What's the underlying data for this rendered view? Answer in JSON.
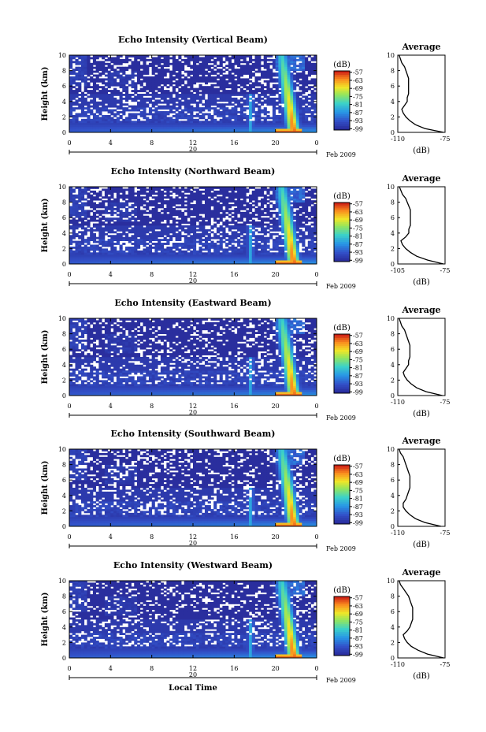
{
  "chart_data": [
    {
      "type": "heatmap",
      "title": "Echo Intensity (Vertical Beam)",
      "ylabel": "Height (km)",
      "x_ticks": [
        "0",
        "4",
        "8",
        "12",
        "16",
        "20",
        "0"
      ],
      "y_ticks": [
        "0",
        "2",
        "4",
        "6",
        "8",
        "10"
      ],
      "xlim": [
        0,
        24
      ],
      "ylim": [
        0,
        10
      ],
      "date_marker": "20",
      "date_label": "Feb 2009",
      "colorbar": {
        "unit": "(dB)",
        "ticks": [
          "-57",
          "-63",
          "-69",
          "-75",
          "-81",
          "-87",
          "-93",
          "-99"
        ],
        "range": [
          -100,
          -56
        ]
      },
      "profile": {
        "title": "Average",
        "xlabel": "(dB)",
        "x_ticks": [
          "-110",
          "-75"
        ],
        "xlim": [
          -110,
          -75
        ],
        "heights": [
          0,
          0.5,
          1,
          1.5,
          2,
          2.5,
          3,
          3.5,
          4,
          4.5,
          5,
          5.5,
          6,
          6.5,
          7,
          7.5,
          8,
          8.5,
          9,
          9.5,
          10
        ],
        "values": [
          -76,
          -90,
          -97,
          -101,
          -104,
          -106,
          -107,
          -105,
          -103,
          -103,
          -102,
          -102,
          -102,
          -102,
          -102,
          -103,
          -104,
          -105,
          -107,
          -108,
          -109
        ]
      }
    },
    {
      "type": "heatmap",
      "title": "Echo Intensity (Northward Beam)",
      "ylabel": "Height (km)",
      "x_ticks": [
        "0",
        "4",
        "8",
        "12",
        "16",
        "20",
        "0"
      ],
      "y_ticks": [
        "0",
        "2",
        "4",
        "6",
        "8",
        "10"
      ],
      "xlim": [
        0,
        24
      ],
      "ylim": [
        0,
        10
      ],
      "date_marker": "20",
      "date_label": "Feb 2009",
      "colorbar": {
        "unit": "(dB)",
        "ticks": [
          "-57",
          "-63",
          "-69",
          "-75",
          "-81",
          "-87",
          "-93",
          "-99"
        ],
        "range": [
          -100,
          -56
        ]
      },
      "profile": {
        "title": "Average",
        "xlabel": "(dB)",
        "x_ticks": [
          "-105",
          "-75"
        ],
        "xlim": [
          -105,
          -75
        ],
        "heights": [
          0,
          0.5,
          1,
          1.5,
          2,
          2.5,
          3,
          3.5,
          4,
          4.5,
          5,
          5.5,
          6,
          6.5,
          7,
          7.5,
          8,
          8.5,
          9,
          9.5,
          10
        ],
        "values": [
          -76,
          -86,
          -93,
          -97,
          -100,
          -102,
          -103,
          -100,
          -98,
          -98,
          -97,
          -97,
          -97,
          -97,
          -97,
          -98,
          -99,
          -100,
          -102,
          -103,
          -104
        ]
      }
    },
    {
      "type": "heatmap",
      "title": "Echo Intensity (Eastward Beam)",
      "ylabel": "Height (km)",
      "x_ticks": [
        "0",
        "4",
        "8",
        "12",
        "16",
        "20",
        "0"
      ],
      "y_ticks": [
        "0",
        "2",
        "4",
        "6",
        "8",
        "10"
      ],
      "xlim": [
        0,
        24
      ],
      "ylim": [
        0,
        10
      ],
      "date_marker": "20",
      "date_label": "Feb 2009",
      "colorbar": {
        "unit": "(dB)",
        "ticks": [
          "-57",
          "-63",
          "-69",
          "-75",
          "-81",
          "-87",
          "-93",
          "-99"
        ],
        "range": [
          -100,
          -56
        ]
      },
      "profile": {
        "title": "Average",
        "xlabel": "(dB)",
        "x_ticks": [
          "-110",
          "-75"
        ],
        "xlim": [
          -110,
          -75
        ],
        "heights": [
          0,
          0.5,
          1,
          1.5,
          2,
          2.5,
          3,
          3.5,
          4,
          4.5,
          5,
          5.5,
          6,
          6.5,
          7,
          7.5,
          8,
          8.5,
          9,
          9.5,
          10
        ],
        "values": [
          -77,
          -89,
          -96,
          -100,
          -103,
          -105,
          -106,
          -104,
          -102,
          -102,
          -101,
          -101,
          -101,
          -101,
          -102,
          -103,
          -104,
          -105,
          -107,
          -108,
          -109
        ]
      }
    },
    {
      "type": "heatmap",
      "title": "Echo Intensity (Southward Beam)",
      "ylabel": "Height (km)",
      "x_ticks": [
        "0",
        "4",
        "8",
        "12",
        "16",
        "20",
        "0"
      ],
      "y_ticks": [
        "0",
        "2",
        "4",
        "6",
        "8",
        "10"
      ],
      "xlim": [
        0,
        24
      ],
      "ylim": [
        0,
        10
      ],
      "date_marker": "20",
      "date_label": "Feb 2009",
      "colorbar": {
        "unit": "(dB)",
        "ticks": [
          "-57",
          "-63",
          "-69",
          "-75",
          "-81",
          "-87",
          "-93",
          "-99"
        ],
        "range": [
          -100,
          -56
        ]
      },
      "profile": {
        "title": "Average",
        "xlabel": "(dB)",
        "x_ticks": [
          "-110",
          "-75"
        ],
        "xlim": [
          -110,
          -75
        ],
        "heights": [
          0,
          0.5,
          1,
          1.5,
          2,
          2.5,
          3,
          3.5,
          4,
          4.5,
          5,
          5.5,
          6,
          6.5,
          7,
          7.5,
          8,
          8.5,
          9,
          9.5,
          10
        ],
        "values": [
          -78,
          -90,
          -97,
          -101,
          -104,
          -106,
          -106,
          -104,
          -103,
          -102,
          -101,
          -101,
          -101,
          -101,
          -102,
          -103,
          -104,
          -105,
          -106,
          -108,
          -109
        ]
      }
    },
    {
      "type": "heatmap",
      "title": "Echo Intensity (Westward Beam)",
      "ylabel": "Height (km)",
      "x_ticks": [
        "0",
        "4",
        "8",
        "12",
        "16",
        "20",
        "0"
      ],
      "y_ticks": [
        "0",
        "2",
        "4",
        "6",
        "8",
        "10"
      ],
      "xlim": [
        0,
        24
      ],
      "ylim": [
        0,
        10
      ],
      "date_marker": "20",
      "date_label": "Feb 2009",
      "xlabel": "Local Time",
      "colorbar": {
        "unit": "(dB)",
        "ticks": [
          "-57",
          "-63",
          "-69",
          "-75",
          "-81",
          "-87",
          "-93",
          "-99"
        ],
        "range": [
          -100,
          -56
        ]
      },
      "profile": {
        "title": "Average",
        "xlabel": "(dB)",
        "x_ticks": [
          "-110",
          "-75"
        ],
        "xlim": [
          -110,
          -75
        ],
        "heights": [
          0,
          0.5,
          1,
          1.5,
          2,
          2.5,
          3,
          3.5,
          4,
          4.5,
          5,
          5.5,
          6,
          6.5,
          7,
          7.5,
          8,
          8.5,
          9,
          9.5,
          10
        ],
        "values": [
          -76,
          -88,
          -95,
          -100,
          -103,
          -105,
          -106,
          -103,
          -101,
          -100,
          -99,
          -99,
          -99,
          -99,
          -100,
          -101,
          -102,
          -104,
          -106,
          -108,
          -109
        ]
      }
    }
  ]
}
